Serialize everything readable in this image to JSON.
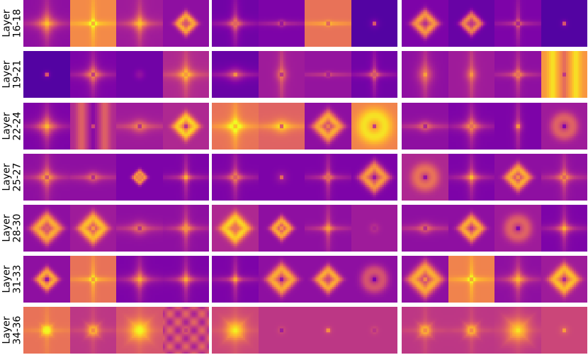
{
  "rows": [
    {
      "label": "Layer\n16-18",
      "groups": [
        [
          {
            "bg": 0.3,
            "pat": "cross",
            "spot": 0.95,
            "w": 0.35
          },
          {
            "bg": 0.72,
            "pat": "cross",
            "spot": 0.4,
            "w": 0.15
          },
          {
            "bg": 0.35,
            "pat": "cross",
            "spot": 0.9,
            "w": 0.3
          },
          {
            "bg": 0.3,
            "pat": "ring",
            "spot": 0.6,
            "w": 0.3
          }
        ],
        [
          {
            "bg": 0.22,
            "pat": "cross",
            "spot": 0.5,
            "w": 0.25
          },
          {
            "bg": 0.25,
            "pat": "hline",
            "spot": 0.05,
            "w": 0.15
          },
          {
            "bg": 0.65,
            "pat": "hline",
            "spot": 0.2,
            "w": 0.12
          },
          {
            "bg": 0.15,
            "pat": "dot",
            "spot": 1.0,
            "w": 0.2
          }
        ],
        [
          {
            "bg": 0.25,
            "pat": "ring",
            "spot": 0.4,
            "w": 0.35
          },
          {
            "bg": 0.2,
            "pat": "ring",
            "spot": 0.5,
            "w": 0.3
          },
          {
            "bg": 0.25,
            "pat": "cross",
            "spot": 0.05,
            "w": 0.15
          },
          {
            "bg": 0.15,
            "pat": "dot",
            "spot": 1.0,
            "w": 0.15
          }
        ]
      ]
    },
    {
      "label": "Layer\n19-21",
      "groups": [
        [
          {
            "bg": 0.15,
            "pat": "dot",
            "spot": 1.0,
            "w": 0.15
          },
          {
            "bg": 0.25,
            "pat": "cross",
            "spot": 0.1,
            "w": 0.3
          },
          {
            "bg": 0.22,
            "pat": "dot",
            "spot": 0.3,
            "w": 0.2
          },
          {
            "bg": 0.4,
            "pat": "cross",
            "spot": 0.6,
            "w": 0.3
          }
        ],
        [
          {
            "bg": 0.2,
            "pat": "hline",
            "spot": 0.95,
            "w": 0.3
          },
          {
            "bg": 0.35,
            "pat": "vline",
            "spot": 0.1,
            "w": 0.25
          },
          {
            "bg": 0.32,
            "pat": "hline",
            "spot": 0.1,
            "w": 0.12
          },
          {
            "bg": 0.22,
            "pat": "cross",
            "spot": 0.4,
            "w": 0.2
          }
        ],
        [
          {
            "bg": 0.3,
            "pat": "vline",
            "spot": 0.9,
            "w": 0.35
          },
          {
            "bg": 0.35,
            "pat": "vline",
            "spot": 0.8,
            "w": 0.25
          },
          {
            "bg": 0.3,
            "pat": "cross",
            "spot": 0.5,
            "w": 0.2
          },
          {
            "bg": 0.75,
            "pat": "vband",
            "spot": 0.2,
            "w": 0.3
          }
        ]
      ]
    },
    {
      "label": "Layer\n22-24",
      "groups": [
        [
          {
            "bg": 0.25,
            "pat": "cross",
            "spot": 0.95,
            "w": 0.35
          },
          {
            "bg": 0.4,
            "pat": "vband",
            "spot": 0.8,
            "w": 0.3
          },
          {
            "bg": 0.35,
            "pat": "hline",
            "spot": 0.05,
            "w": 0.3
          },
          {
            "bg": 0.4,
            "pat": "ring",
            "spot": 0.2,
            "w": 0.35
          }
        ],
        [
          {
            "bg": 0.65,
            "pat": "cross",
            "spot": 0.5,
            "w": 0.3
          },
          {
            "bg": 0.6,
            "pat": "hline",
            "spot": 0.05,
            "w": 0.3
          },
          {
            "bg": 0.3,
            "pat": "ring",
            "spot": 0.9,
            "w": 0.4
          },
          {
            "bg": 0.7,
            "pat": "hole",
            "spot": 0.05,
            "w": 0.45
          }
        ],
        [
          {
            "bg": 0.3,
            "pat": "hline",
            "spot": 0.05,
            "w": 0.25
          },
          {
            "bg": 0.25,
            "pat": "cross",
            "spot": 0.5,
            "w": 0.3
          },
          {
            "bg": 0.25,
            "pat": "vline",
            "spot": 0.95,
            "w": 0.2
          },
          {
            "bg": 0.35,
            "pat": "hole",
            "spot": 0.05,
            "w": 0.35
          }
        ]
      ]
    },
    {
      "label": "Layer\n25-27",
      "groups": [
        [
          {
            "bg": 0.3,
            "pat": "cross",
            "spot": 0.2,
            "w": 0.3
          },
          {
            "bg": 0.3,
            "pat": "hline",
            "spot": 0.1,
            "w": 0.25
          },
          {
            "bg": 0.25,
            "pat": "ring",
            "spot": 1.0,
            "w": 0.2
          },
          {
            "bg": 0.25,
            "pat": "cross",
            "spot": 0.95,
            "w": 0.2
          }
        ],
        [
          {
            "bg": 0.25,
            "pat": "cross",
            "spot": 0.4,
            "w": 0.25
          },
          {
            "bg": 0.25,
            "pat": "dot",
            "spot": 1.0,
            "w": 0.25
          },
          {
            "bg": 0.25,
            "pat": "cross",
            "spot": 0.5,
            "w": 0.2
          },
          {
            "bg": 0.25,
            "pat": "ring",
            "spot": 0.2,
            "w": 0.4
          }
        ],
        [
          {
            "bg": 0.4,
            "pat": "hole",
            "spot": 0.1,
            "w": 0.35
          },
          {
            "bg": 0.25,
            "pat": "cross",
            "spot": 1.0,
            "w": 0.25
          },
          {
            "bg": 0.3,
            "pat": "ring",
            "spot": 1.0,
            "w": 0.35
          },
          {
            "bg": 0.3,
            "pat": "cross",
            "spot": 0.4,
            "w": 0.25
          }
        ]
      ]
    },
    {
      "label": "Layer\n28-30",
      "groups": [
        [
          {
            "bg": 0.3,
            "pat": "ring",
            "spot": 0.7,
            "w": 0.4
          },
          {
            "bg": 0.35,
            "pat": "ring",
            "spot": 1.0,
            "w": 0.4
          },
          {
            "bg": 0.3,
            "pat": "hline",
            "spot": 0.1,
            "w": 0.3
          },
          {
            "bg": 0.3,
            "pat": "cross",
            "spot": 0.7,
            "w": 0.25
          }
        ],
        [
          {
            "bg": 0.4,
            "pat": "ring",
            "spot": 0.7,
            "w": 0.4
          },
          {
            "bg": 0.3,
            "pat": "ring",
            "spot": 1.0,
            "w": 0.3
          },
          {
            "bg": 0.3,
            "pat": "cross",
            "spot": 0.8,
            "w": 0.2
          },
          {
            "bg": 0.35,
            "pat": "dot",
            "spot": 0.3,
            "w": 0.2
          }
        ],
        [
          {
            "bg": 0.3,
            "pat": "hline",
            "spot": 0.1,
            "w": 0.25
          },
          {
            "bg": 0.3,
            "pat": "ring",
            "spot": 0.4,
            "w": 0.35
          },
          {
            "bg": 0.35,
            "pat": "hole",
            "spot": 0.05,
            "w": 0.35
          },
          {
            "bg": 0.25,
            "pat": "cross",
            "spot": 0.95,
            "w": 0.25
          }
        ]
      ]
    },
    {
      "label": "Layer\n31-33",
      "groups": [
        [
          {
            "bg": 0.3,
            "pat": "ring",
            "spot": 0.1,
            "w": 0.3
          },
          {
            "bg": 0.65,
            "pat": "cross",
            "spot": 0.4,
            "w": 0.15
          },
          {
            "bg": 0.25,
            "pat": "cross",
            "spot": 0.9,
            "w": 0.3
          },
          {
            "bg": 0.25,
            "pat": "cross",
            "spot": 0.9,
            "w": 0.25
          }
        ],
        [
          {
            "bg": 0.25,
            "pat": "cross",
            "spot": 0.9,
            "w": 0.2
          },
          {
            "bg": 0.3,
            "pat": "ring",
            "spot": 0.1,
            "w": 0.4
          },
          {
            "bg": 0.3,
            "pat": "ring",
            "spot": 0.5,
            "w": 0.35
          },
          {
            "bg": 0.3,
            "pat": "hole",
            "spot": 0.05,
            "w": 0.35
          }
        ],
        [
          {
            "bg": 0.3,
            "pat": "ring",
            "spot": 1.0,
            "w": 0.45
          },
          {
            "bg": 0.7,
            "pat": "cross",
            "spot": 0.4,
            "w": 0.15
          },
          {
            "bg": 0.3,
            "pat": "cross",
            "spot": 0.9,
            "w": 0.3
          },
          {
            "bg": 0.35,
            "pat": "ring",
            "spot": 0.2,
            "w": 0.4
          }
        ]
      ]
    },
    {
      "label": "Layer\n34-36",
      "groups": [
        [
          {
            "bg": 0.65,
            "pat": "block",
            "spot": 1.0,
            "w": 0.2
          },
          {
            "bg": 0.45,
            "pat": "block",
            "spot": 0.5,
            "w": 0.25
          },
          {
            "bg": 0.55,
            "pat": "block",
            "spot": 1.0,
            "w": 0.4
          },
          {
            "bg": 0.5,
            "pat": "grid",
            "spot": 0.3,
            "w": 0.3
          }
        ],
        [
          {
            "bg": 0.5,
            "pat": "block",
            "spot": 1.0,
            "w": 0.4
          },
          {
            "bg": 0.45,
            "pat": "dot",
            "spot": 0.1,
            "w": 0.15
          },
          {
            "bg": 0.45,
            "pat": "dot",
            "spot": 1.0,
            "w": 0.15
          },
          {
            "bg": 0.45,
            "pat": "dot",
            "spot": 0.3,
            "w": 0.15
          }
        ],
        [
          {
            "bg": 0.45,
            "pat": "block",
            "spot": 0.5,
            "w": 0.25
          },
          {
            "bg": 0.45,
            "pat": "block",
            "spot": 0.5,
            "w": 0.25
          },
          {
            "bg": 0.45,
            "pat": "block",
            "spot": 1.0,
            "w": 0.45
          },
          {
            "bg": 0.5,
            "pat": "dot",
            "spot": 1.0,
            "w": 0.2
          }
        ]
      ]
    }
  ]
}
